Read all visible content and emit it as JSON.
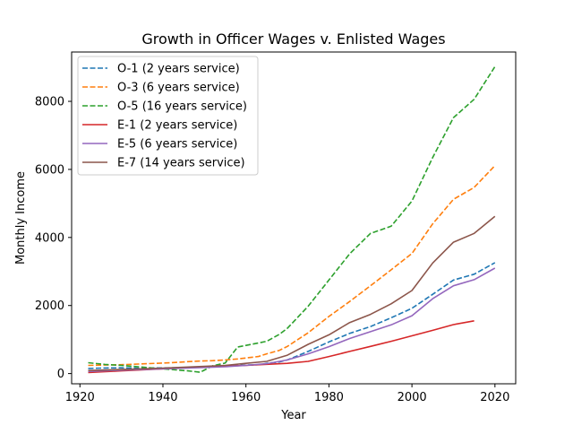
{
  "chart_data": {
    "type": "line",
    "title": "Growth in Officer Wages v. Enlisted Wages",
    "xlabel": "Year",
    "ylabel": "Monthly Income",
    "xlim": [
      1918,
      2025
    ],
    "ylim": [
      -300,
      9450
    ],
    "xticks": [
      1920,
      1940,
      1960,
      1980,
      2000,
      2020
    ],
    "yticks": [
      0,
      2000,
      4000,
      6000,
      8000
    ],
    "grid": false,
    "legend_position": "top-left",
    "series": [
      {
        "name": "O-1 (2 years service)",
        "color": "#1f77b4",
        "dash": "dashed",
        "x": [
          1922,
          1926,
          1930,
          1934,
          1942,
          1946,
          1949,
          1952,
          1955,
          1958,
          1963,
          1965,
          1968,
          1970,
          1975,
          1980,
          1985,
          1990,
          1995,
          2000,
          2005,
          2010,
          2015,
          2020
        ],
        "y": [
          150,
          165,
          170,
          160,
          170,
          180,
          185,
          200,
          220,
          240,
          260,
          300,
          340,
          400,
          650,
          930,
          1180,
          1380,
          1640,
          1920,
          2330,
          2750,
          2920,
          3260
        ]
      },
      {
        "name": "O-3 (6 years service)",
        "color": "#ff7f0e",
        "dash": "dashed",
        "x": [
          1922,
          1926,
          1930,
          1934,
          1942,
          1946,
          1949,
          1952,
          1955,
          1958,
          1963,
          1965,
          1968,
          1970,
          1975,
          1980,
          1985,
          1990,
          1995,
          2000,
          2005,
          2010,
          2015,
          2020
        ],
        "y": [
          240,
          250,
          260,
          280,
          320,
          350,
          370,
          380,
          400,
          430,
          500,
          580,
          680,
          800,
          1200,
          1680,
          2120,
          2580,
          3050,
          3530,
          4400,
          5120,
          5470,
          6110
        ]
      },
      {
        "name": "O-5 (16 years service)",
        "color": "#2ca02c",
        "dash": "dashed",
        "x": [
          1922,
          1926,
          1930,
          1934,
          1942,
          1946,
          1949,
          1952,
          1955,
          1958,
          1963,
          1965,
          1968,
          1970,
          1975,
          1980,
          1985,
          1990,
          1995,
          2000,
          2005,
          2010,
          2015,
          2020
        ],
        "y": [
          320,
          270,
          240,
          200,
          120,
          80,
          40,
          230,
          310,
          780,
          900,
          950,
          1150,
          1330,
          1980,
          2750,
          3520,
          4120,
          4330,
          5070,
          6350,
          7520,
          8060,
          9020
        ]
      },
      {
        "name": "E-1 (2 years service)",
        "color": "#d62728",
        "dash": "solid",
        "x": [
          1922,
          1930,
          1940,
          1950,
          1960,
          1970,
          1975,
          1980,
          1985,
          1990,
          1995,
          2000,
          2005,
          2010,
          2015
        ],
        "y": [
          30,
          80,
          140,
          200,
          240,
          300,
          360,
          500,
          650,
          800,
          950,
          1110,
          1270,
          1440,
          1550
        ]
      },
      {
        "name": "E-5 (6 years service)",
        "color": "#9467bd",
        "dash": "solid",
        "x": [
          1922,
          1930,
          1940,
          1950,
          1955,
          1960,
          1965,
          1970,
          1975,
          1980,
          1985,
          1990,
          1995,
          2000,
          2005,
          2010,
          2015,
          2020
        ],
        "y": [
          60,
          100,
          140,
          180,
          200,
          240,
          290,
          400,
          580,
          790,
          1030,
          1230,
          1430,
          1700,
          2200,
          2580,
          2760,
          3100
        ]
      },
      {
        "name": "E-7 (14 years service)",
        "color": "#8c564b",
        "dash": "solid",
        "x": [
          1922,
          1930,
          1940,
          1950,
          1955,
          1960,
          1965,
          1970,
          1975,
          1980,
          1985,
          1990,
          1995,
          2000,
          2005,
          2010,
          2015,
          2020
        ],
        "y": [
          90,
          120,
          160,
          210,
          240,
          300,
          360,
          540,
          860,
          1140,
          1500,
          1740,
          2050,
          2440,
          3250,
          3860,
          4120,
          4620
        ]
      }
    ]
  }
}
